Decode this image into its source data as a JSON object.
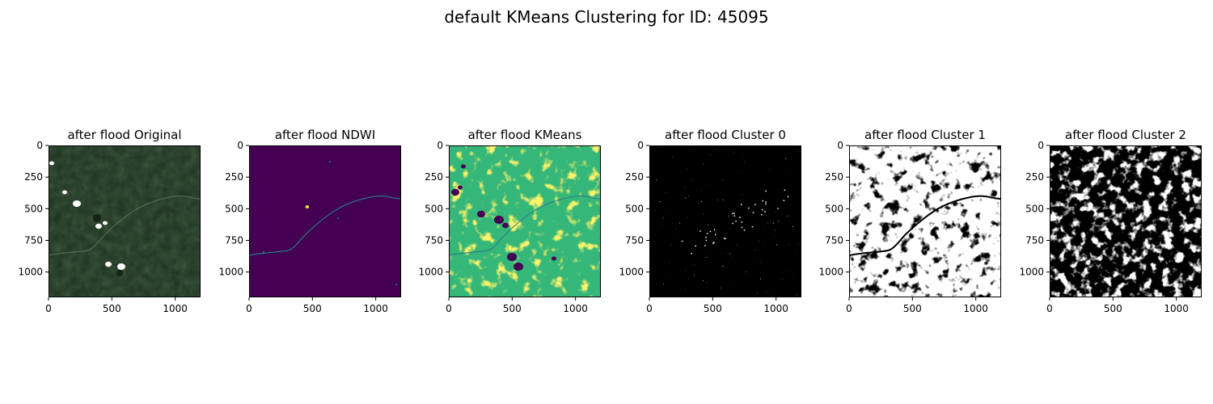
{
  "figure": {
    "title": "default KMeans Clustering for ID: 45095"
  },
  "panels": [
    {
      "title": "after flood Original",
      "kind": "satellite-rgb"
    },
    {
      "title": "after flood NDWI",
      "kind": "ndwi-viridis"
    },
    {
      "title": "after flood KMeans",
      "kind": "kmeans-viridis"
    },
    {
      "title": "after flood Cluster 0",
      "kind": "mask-sparse"
    },
    {
      "title": "after flood Cluster 1",
      "kind": "mask-mostly-white"
    },
    {
      "title": "after flood Cluster 2",
      "kind": "mask-mostly-black"
    }
  ],
  "axes": {
    "x_ticks": [
      "0",
      "500",
      "1000"
    ],
    "y_ticks": [
      "0",
      "250",
      "500",
      "750",
      "1000"
    ],
    "x_tick_values": [
      0,
      500,
      1000
    ],
    "y_tick_values": [
      0,
      250,
      500,
      750,
      1000
    ],
    "extent": [
      0,
      1200
    ]
  },
  "colors": {
    "ndwi_background": "#440154",
    "ndwi_water": "#21918c",
    "ndwi_bright": "#fde725",
    "kmeans_green": "#35b779",
    "kmeans_yellow": "#fde725",
    "kmeans_purple": "#440154",
    "satellite_dark": "#1c3320",
    "cloud": "#ffffff",
    "mask_on": "#ffffff",
    "mask_off": "#000000"
  }
}
